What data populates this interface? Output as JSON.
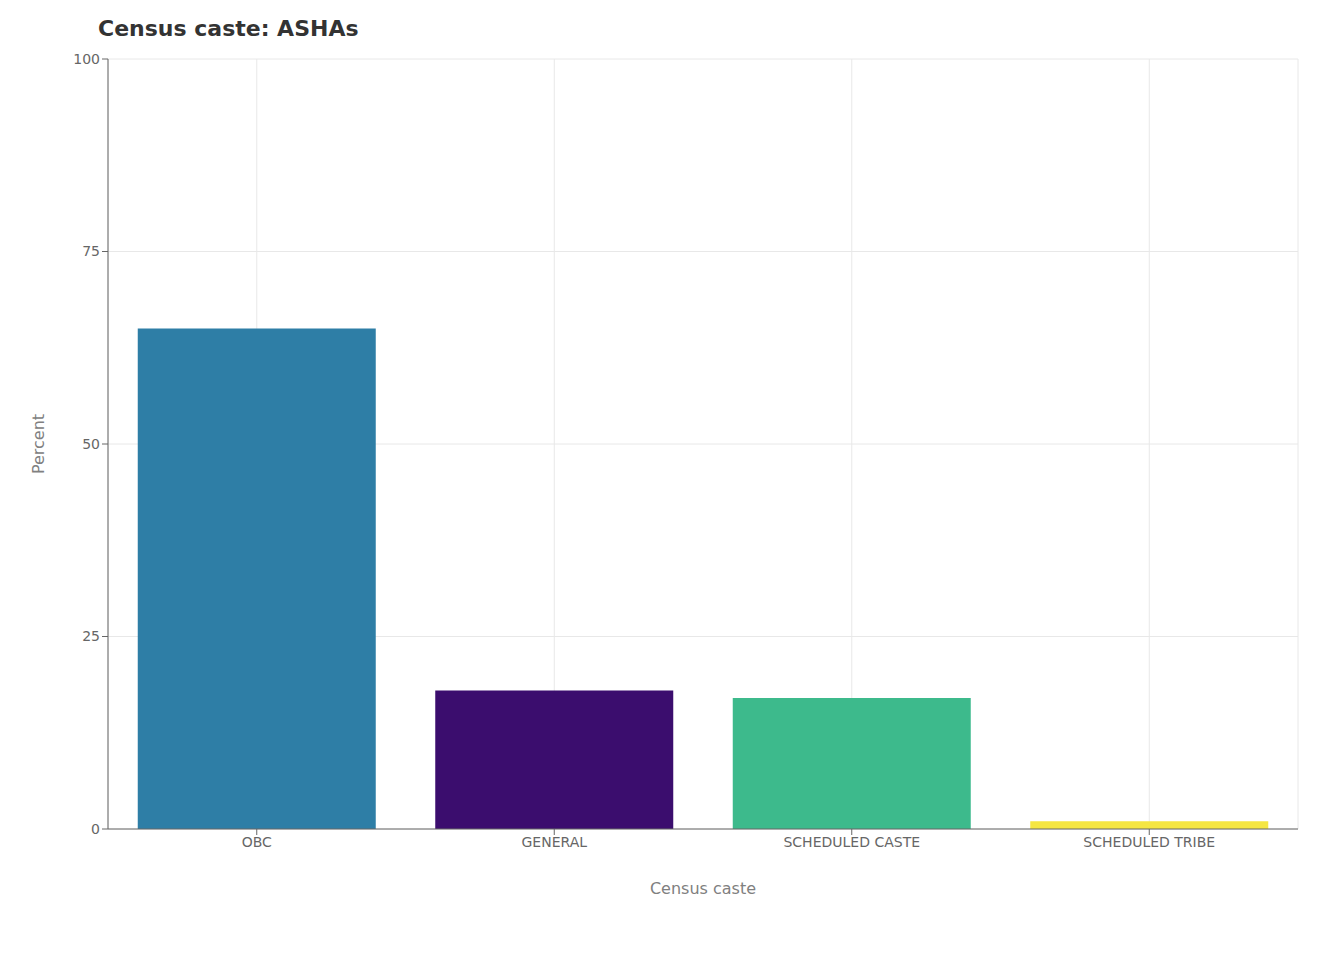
{
  "chart_data": {
    "type": "bar",
    "title": "Census caste: ASHAs",
    "categories": [
      "OBC",
      "GENERAL",
      "SCHEDULED CASTE",
      "SCHEDULED TRIBE"
    ],
    "values": [
      65.0,
      18.0,
      17.0,
      1.0
    ],
    "colors": [
      "#2e7ea6",
      "#3b0d6e",
      "#3dba8c",
      "#f5e642"
    ],
    "xlabel": "Census caste",
    "ylabel": "Percent",
    "ylim": [
      0,
      100
    ],
    "yticks": [
      0,
      25,
      50,
      75,
      100
    ],
    "grid": true
  }
}
